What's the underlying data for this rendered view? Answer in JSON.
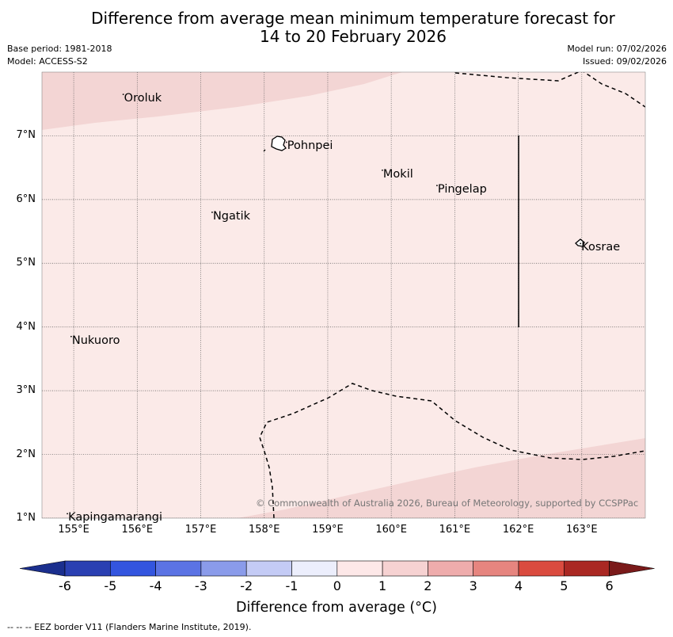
{
  "title": {
    "line1": "Difference from average mean minimum temperature forecast for",
    "line2": "14 to 20 February 2026"
  },
  "meta": {
    "base_period": "Base period: 1981-2018",
    "model": "Model: ACCESS-S2",
    "model_run": "Model run: 07/02/2026",
    "issued": "Issued: 09/02/2026"
  },
  "map": {
    "lon_range": [
      154.5,
      164.0
    ],
    "lat_range": [
      1.0,
      8.0
    ],
    "lat_ticks": [
      "1°N",
      "2°N",
      "3°N",
      "4°N",
      "5°N",
      "6°N",
      "7°N"
    ],
    "lon_ticks": [
      "155°E",
      "156°E",
      "157°E",
      "158°E",
      "159°E",
      "160°E",
      "161°E",
      "162°E",
      "163°E"
    ],
    "places": [
      {
        "name": "Oroluk",
        "lon": 155.78,
        "lat": 7.65
      },
      {
        "name": "Pohnpei",
        "lon": 158.35,
        "lat": 6.9
      },
      {
        "name": "Mokil",
        "lon": 159.86,
        "lat": 6.46
      },
      {
        "name": "Pingelap",
        "lon": 160.72,
        "lat": 6.22
      },
      {
        "name": "Ngatik",
        "lon": 157.18,
        "lat": 5.8
      },
      {
        "name": "Kosrae",
        "lon": 162.98,
        "lat": 5.31
      },
      {
        "name": "Nukuoro",
        "lon": 154.96,
        "lat": 3.85
      },
      {
        "name": "Kapingamarangi",
        "lon": 154.9,
        "lat": 1.07
      }
    ],
    "copyright": "© Commonwealth of Australia 2026, Bureau of Meteorology, supported by CCSPPac"
  },
  "colorbar": {
    "ticks": [
      "-6",
      "-5",
      "-4",
      "-3",
      "-2",
      "-1",
      "0",
      "1",
      "2",
      "3",
      "4",
      "5",
      "6"
    ],
    "colors": [
      "#1b2f8e",
      "#2a40b2",
      "#3355df",
      "#5b73e4",
      "#8a9bea",
      "#c4cbf5",
      "#eceefc",
      "#fde8e8",
      "#f6d2d2",
      "#eeacac",
      "#e6857f",
      "#da4b3f",
      "#aa2823",
      "#7a1a1a"
    ],
    "title": "Difference from average (°C)"
  },
  "footer": "--  --  -- EEZ border V11 (Flanders Marine Institute, 2019)."
}
